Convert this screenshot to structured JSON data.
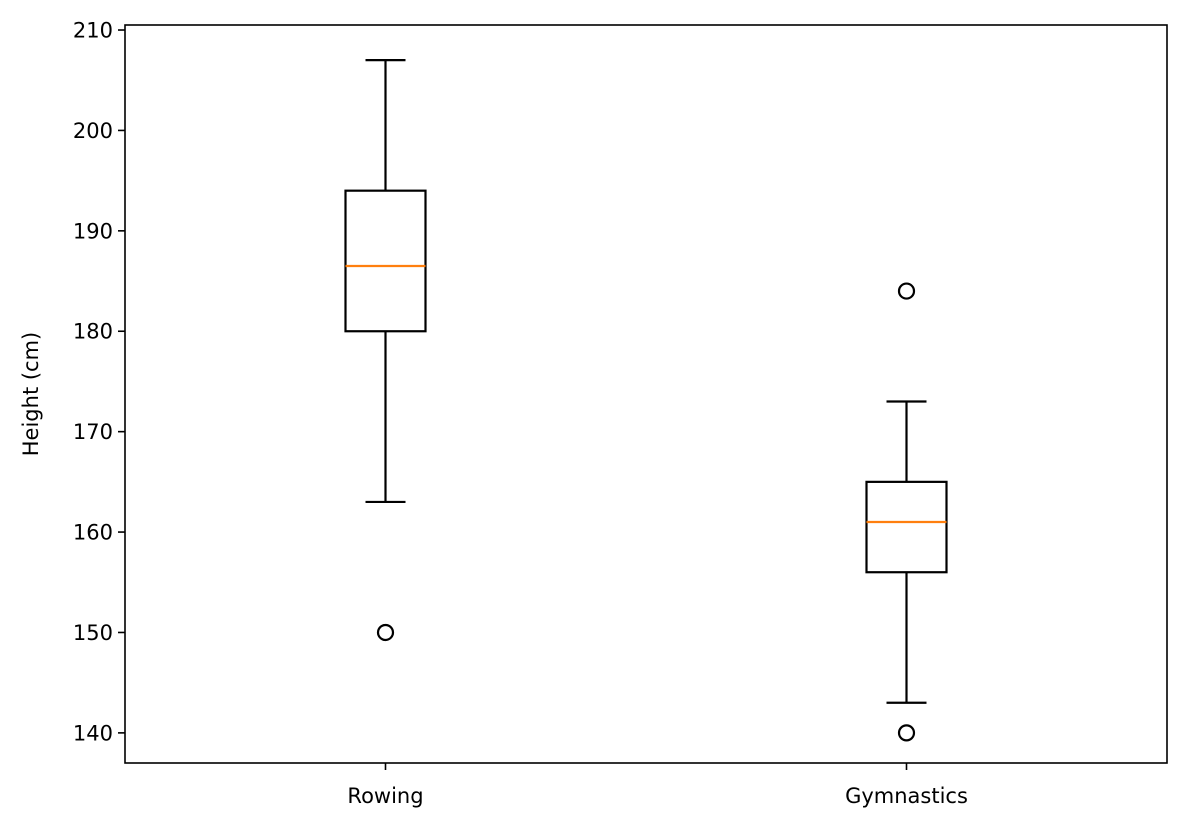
{
  "chart_data": {
    "type": "boxplot",
    "title": "",
    "xlabel": "",
    "ylabel": "Height (cm)",
    "ylim": [
      137,
      210.5
    ],
    "yticks": [
      140,
      150,
      160,
      170,
      180,
      190,
      200,
      210
    ],
    "grid": false,
    "categories": [
      "Rowing",
      "Gymnastics"
    ],
    "boxes": [
      {
        "category": "Rowing",
        "whisker_low": 163,
        "q1": 180,
        "median": 186.5,
        "q3": 194,
        "whisker_high": 207,
        "outliers": [
          150
        ]
      },
      {
        "category": "Gymnastics",
        "whisker_low": 143,
        "q1": 156,
        "median": 161,
        "q3": 165,
        "whisker_high": 173,
        "outliers": [
          184,
          140
        ]
      }
    ],
    "colors": {
      "box": "#000000",
      "median": "#ff7f0e",
      "outlier": "#000000"
    }
  }
}
